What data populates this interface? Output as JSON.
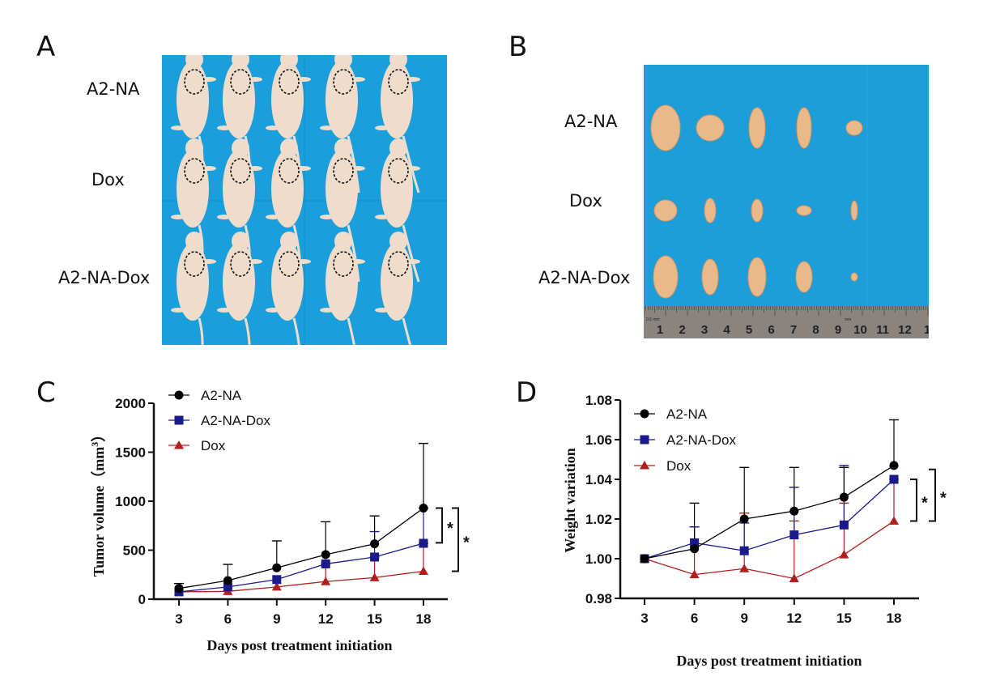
{
  "panels": {
    "A": {
      "letter": "A",
      "row_labels": [
        "A2-NA",
        "Dox",
        "A2-NA-Dox"
      ],
      "image_description": "Nude mice photographed on blue drape, 3 rows x 5 mice, tumors circled with dashed ellipses",
      "colors": {
        "background": "#1a9fdc",
        "mouse": "#efdccb",
        "circle": "#111111"
      }
    },
    "B": {
      "letter": "B",
      "row_labels": [
        "A2-NA",
        "Dox",
        "A2-NA-Dox"
      ],
      "image_description": "Excised tumors on blue drape, 3 rows x 5 tumors, ruler along bottom",
      "ruler_labels": [
        "1",
        "2",
        "3",
        "4",
        "5",
        "6",
        "7",
        "8",
        "9",
        "10",
        "11",
        "12",
        "1"
      ],
      "ruler_small_labels": [
        "0.5 mm",
        "mm"
      ],
      "colors": {
        "background": "#1c9ed9",
        "tumor": "#e9b98c",
        "ruler": "#8a8480"
      }
    },
    "C": {
      "letter": "C"
    },
    "D": {
      "letter": "D"
    }
  },
  "chart_data": [
    {
      "id": "C",
      "type": "line",
      "title": "",
      "xlabel": "Days post treatment initiation",
      "ylabel": "Tumor volume（mm³）",
      "ylabel_main": "Tumor volume",
      "ylabel_unit": "（mm",
      "ylabel_sup": "3",
      "ylabel_close": "）",
      "x": [
        3,
        6,
        9,
        12,
        15,
        18
      ],
      "x_tick_labels": [
        "3",
        "6",
        "9",
        "12",
        "15",
        "18"
      ],
      "ylim": [
        0,
        2000
      ],
      "y_ticks": [
        0,
        500,
        1000,
        1500,
        2000
      ],
      "y_tick_labels": [
        "0",
        "500",
        "1000",
        "1500",
        "2000"
      ],
      "legend_position": "top-left",
      "grid": false,
      "series": [
        {
          "name": "A2-NA",
          "marker": "circle",
          "color": "#000000",
          "values": [
            110,
            190,
            320,
            455,
            565,
            930
          ],
          "error_upper": [
            160,
            355,
            595,
            790,
            850,
            1590
          ]
        },
        {
          "name": "A2-NA-Dox",
          "marker": "square",
          "color": "#1a1a8c",
          "values": [
            75,
            125,
            200,
            360,
            430,
            570
          ],
          "error_upper": [
            75,
            125,
            200,
            360,
            690,
            930
          ]
        },
        {
          "name": "Dox",
          "marker": "triangle",
          "color": "#b01e1e",
          "values": [
            75,
            80,
            125,
            180,
            220,
            285
          ],
          "error_upper": [
            75,
            80,
            125,
            360,
            430,
            570
          ]
        }
      ],
      "annotations": [
        {
          "type": "significance",
          "label": "*",
          "compare": [
            "A2-NA",
            "A2-NA-Dox"
          ],
          "at_x": 18
        },
        {
          "type": "significance",
          "label": "*",
          "compare": [
            "A2-NA",
            "Dox"
          ],
          "at_x": 18
        }
      ]
    },
    {
      "id": "D",
      "type": "line",
      "title": "",
      "xlabel": "Days post treatment initiation",
      "ylabel": "Weight variation",
      "x": [
        3,
        6,
        9,
        12,
        15,
        18
      ],
      "x_tick_labels": [
        "3",
        "6",
        "9",
        "12",
        "15",
        "18"
      ],
      "ylim": [
        0.98,
        1.08
      ],
      "y_ticks": [
        0.98,
        1.0,
        1.02,
        1.04,
        1.06,
        1.08
      ],
      "y_tick_labels": [
        "0.98",
        "1.00",
        "1.02",
        "1.04",
        "1.06",
        "1.08"
      ],
      "legend_position": "top-left",
      "grid": false,
      "series": [
        {
          "name": "A2-NA",
          "marker": "circle",
          "color": "#000000",
          "values": [
            1.0,
            1.005,
            1.02,
            1.024,
            1.031,
            1.047
          ],
          "error_upper": [
            1.0,
            1.028,
            1.046,
            1.046,
            1.046,
            1.07
          ]
        },
        {
          "name": "A2-NA-Dox",
          "marker": "square",
          "color": "#1a1a8c",
          "values": [
            1.0,
            1.008,
            1.004,
            1.012,
            1.017,
            1.04
          ],
          "error_upper": [
            1.0,
            1.016,
            1.018,
            1.036,
            1.047,
            1.04
          ]
        },
        {
          "name": "Dox",
          "marker": "triangle",
          "color": "#b01e1e",
          "values": [
            1.0,
            0.992,
            0.995,
            0.99,
            1.002,
            1.019
          ],
          "error_upper": [
            1.0,
            1.016,
            1.023,
            1.019,
            1.028,
            1.04
          ]
        }
      ],
      "annotations": [
        {
          "type": "significance",
          "label": "*",
          "compare": [
            "A2-NA-Dox",
            "Dox"
          ],
          "at_x": 18
        },
        {
          "type": "significance",
          "label": "*",
          "compare": [
            "A2-NA",
            "Dox"
          ],
          "at_x": 18
        }
      ]
    }
  ]
}
